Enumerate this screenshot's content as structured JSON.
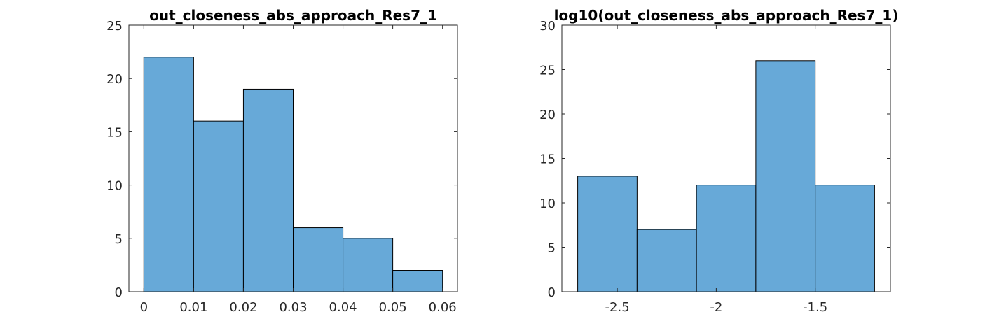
{
  "chart_data": [
    {
      "type": "bar",
      "title": "out_closeness_abs_approach_Res7_1",
      "xlabel": "",
      "ylabel": "",
      "bin_edges": [
        0,
        0.01,
        0.02,
        0.03,
        0.04,
        0.05,
        0.06
      ],
      "values": [
        22,
        16,
        19,
        6,
        5,
        2
      ],
      "xlim": [
        -0.003,
        0.063
      ],
      "ylim": [
        0,
        25
      ],
      "xticks": [
        0,
        0.01,
        0.02,
        0.03,
        0.04,
        0.05,
        0.06
      ],
      "xtick_labels": [
        "0",
        "0.01",
        "0.02",
        "0.03",
        "0.04",
        "0.05",
        "0.06"
      ],
      "yticks": [
        0,
        5,
        10,
        15,
        20,
        25
      ],
      "ytick_labels": [
        "0",
        "5",
        "10",
        "15",
        "20",
        "25"
      ],
      "bar_color": "#67a9d8",
      "grid": false
    },
    {
      "type": "bar",
      "title": "log10(out_closeness_abs_approach_Res7_1)",
      "xlabel": "",
      "ylabel": "",
      "bin_edges": [
        -2.7,
        -2.4,
        -2.1,
        -1.8,
        -1.5,
        -1.2
      ],
      "values": [
        13,
        7,
        12,
        26,
        12
      ],
      "xlim": [
        -2.78,
        -1.12
      ],
      "ylim": [
        0,
        30
      ],
      "xticks": [
        -2.5,
        -2,
        -1.5
      ],
      "xtick_labels": [
        "-2.5",
        "-2",
        "-1.5"
      ],
      "yticks": [
        0,
        5,
        10,
        15,
        20,
        25,
        30
      ],
      "ytick_labels": [
        "0",
        "5",
        "10",
        "15",
        "20",
        "25",
        "30"
      ],
      "bar_color": "#67a9d8",
      "grid": false
    }
  ]
}
